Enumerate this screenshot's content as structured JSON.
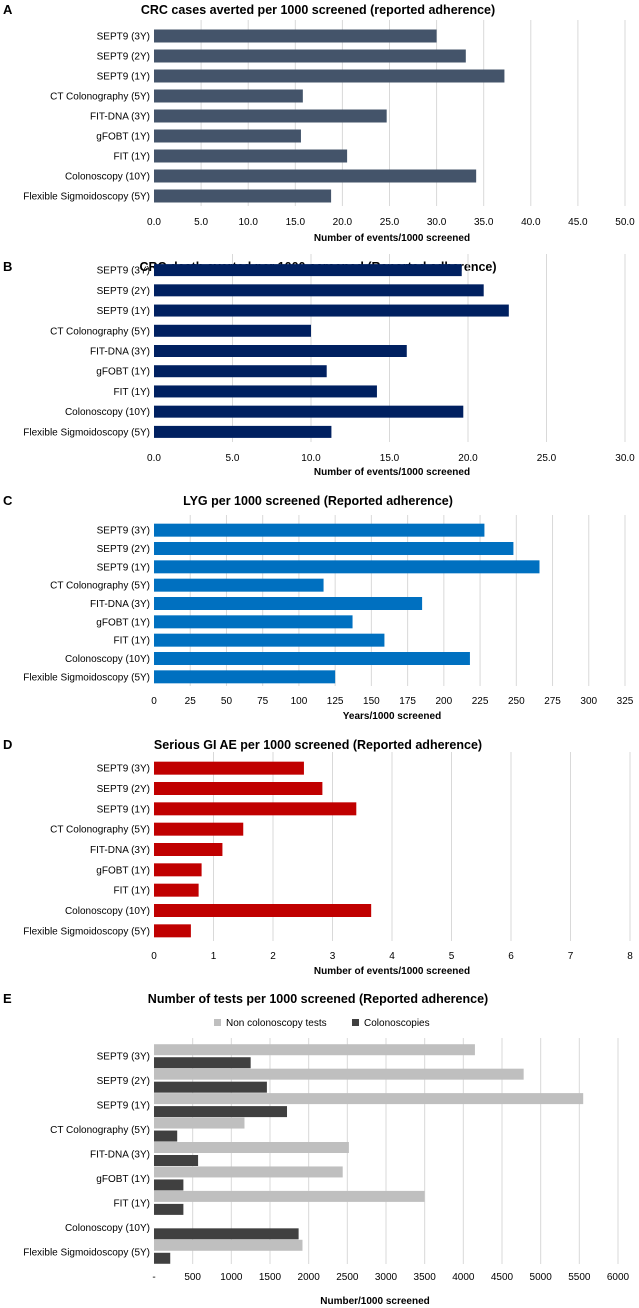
{
  "chart_data": [
    {
      "type": "bar",
      "panel": "A",
      "title": "CRC cases averted per 1000 screened (reported adherence)",
      "xlabel": "Number of events/1000 screened",
      "categories": [
        "SEPT9 (3Y)",
        "SEPT9 (2Y)",
        "SEPT9 (1Y)",
        "CT Colonography (5Y)",
        "FIT-DNA (3Y)",
        "gFOBT (1Y)",
        "FIT (1Y)",
        "Colonoscopy (10Y)",
        "Flexible Sigmoidoscopy (5Y)"
      ],
      "values": [
        30.0,
        33.1,
        37.2,
        15.8,
        24.7,
        15.6,
        20.5,
        34.2,
        18.8
      ],
      "xlim": [
        0,
        50
      ],
      "ticks": [
        "0.0",
        "5.0",
        "10.0",
        "15.0",
        "20.0",
        "25.0",
        "30.0",
        "35.0",
        "40.0",
        "45.0",
        "50.0"
      ],
      "color": "#44546a",
      "grid": true
    },
    {
      "type": "bar",
      "panel": "B",
      "title": "CRC death averted per 1000 screened (Reported adherence)",
      "xlabel": "Number of events/1000 screened",
      "categories": [
        "SEPT9 (3Y)",
        "SEPT9 (2Y)",
        "SEPT9 (1Y)",
        "CT Colonography (5Y)",
        "FIT-DNA (3Y)",
        "gFOBT (1Y)",
        "FIT (1Y)",
        "Colonoscopy (10Y)",
        "Flexible Sigmoidoscopy (5Y)"
      ],
      "values": [
        19.6,
        21.0,
        22.6,
        10.0,
        16.1,
        11.0,
        14.2,
        19.7,
        11.3
      ],
      "xlim": [
        0,
        30
      ],
      "ticks": [
        "0.0",
        "5.0",
        "10.0",
        "15.0",
        "20.0",
        "25.0",
        "30.0"
      ],
      "color": "#002060",
      "grid": true
    },
    {
      "type": "bar",
      "panel": "C",
      "title": "LYG per 1000 screened (Reported adherence)",
      "xlabel": "Years/1000 screened",
      "categories": [
        "SEPT9 (3Y)",
        "SEPT9 (2Y)",
        "SEPT9 (1Y)",
        "CT Colonography (5Y)",
        "FIT-DNA (3Y)",
        "gFOBT (1Y)",
        "FIT (1Y)",
        "Colonoscopy (10Y)",
        "Flexible Sigmoidoscopy (5Y)"
      ],
      "values": [
        228,
        248,
        266,
        117,
        185,
        137,
        159,
        218,
        125
      ],
      "xlim": [
        0,
        325
      ],
      "ticks": [
        "0",
        "25",
        "50",
        "75",
        "100",
        "125",
        "150",
        "175",
        "200",
        "225",
        "250",
        "275",
        "300",
        "325"
      ],
      "color": "#0070c0",
      "grid": true
    },
    {
      "type": "bar",
      "panel": "D",
      "title": "Serious GI AE per 1000 screened (Reported adherence)",
      "xlabel": "Number of events/1000 screened",
      "categories": [
        "SEPT9 (3Y)",
        "SEPT9 (2Y)",
        "SEPT9 (1Y)",
        "CT Colonography (5Y)",
        "FIT-DNA (3Y)",
        "gFOBT (1Y)",
        "FIT (1Y)",
        "Colonoscopy (10Y)",
        "Flexible Sigmoidoscopy (5Y)"
      ],
      "values": [
        2.52,
        2.83,
        3.4,
        1.5,
        1.15,
        0.8,
        0.75,
        3.65,
        0.62
      ],
      "xlim": [
        0,
        8
      ],
      "ticks": [
        "0",
        "1",
        "2",
        "3",
        "4",
        "5",
        "6",
        "7",
        "8"
      ],
      "color": "#c00000",
      "grid": true
    },
    {
      "type": "bar",
      "panel": "E",
      "title": "Number of tests per 1000 screened (Reported adherence)",
      "xlabel": "Number/1000 screened",
      "categories": [
        "SEPT9 (3Y)",
        "SEPT9 (2Y)",
        "SEPT9 (1Y)",
        "CT Colonography (5Y)",
        "FIT-DNA (3Y)",
        "gFOBT (1Y)",
        "FIT (1Y)",
        "Colonoscopy (10Y)",
        "Flexible Sigmoidoscopy (5Y)"
      ],
      "series": [
        {
          "name": "Non colonoscopy tests",
          "color": "#bfbfbf",
          "values": [
            4150,
            4780,
            5550,
            1170,
            2520,
            2440,
            3500,
            0,
            1920
          ]
        },
        {
          "name": "Colonoscopies",
          "color": "#404040",
          "values": [
            1250,
            1460,
            1720,
            300,
            570,
            380,
            380,
            1870,
            210
          ]
        }
      ],
      "xlim": [
        0,
        6000
      ],
      "ticks": [
        "-",
        "500",
        "1000",
        "1500",
        "2000",
        "2500",
        "3000",
        "3500",
        "4000",
        "4500",
        "5000",
        "5500",
        "6000"
      ],
      "legend": "top",
      "grid": true
    }
  ]
}
